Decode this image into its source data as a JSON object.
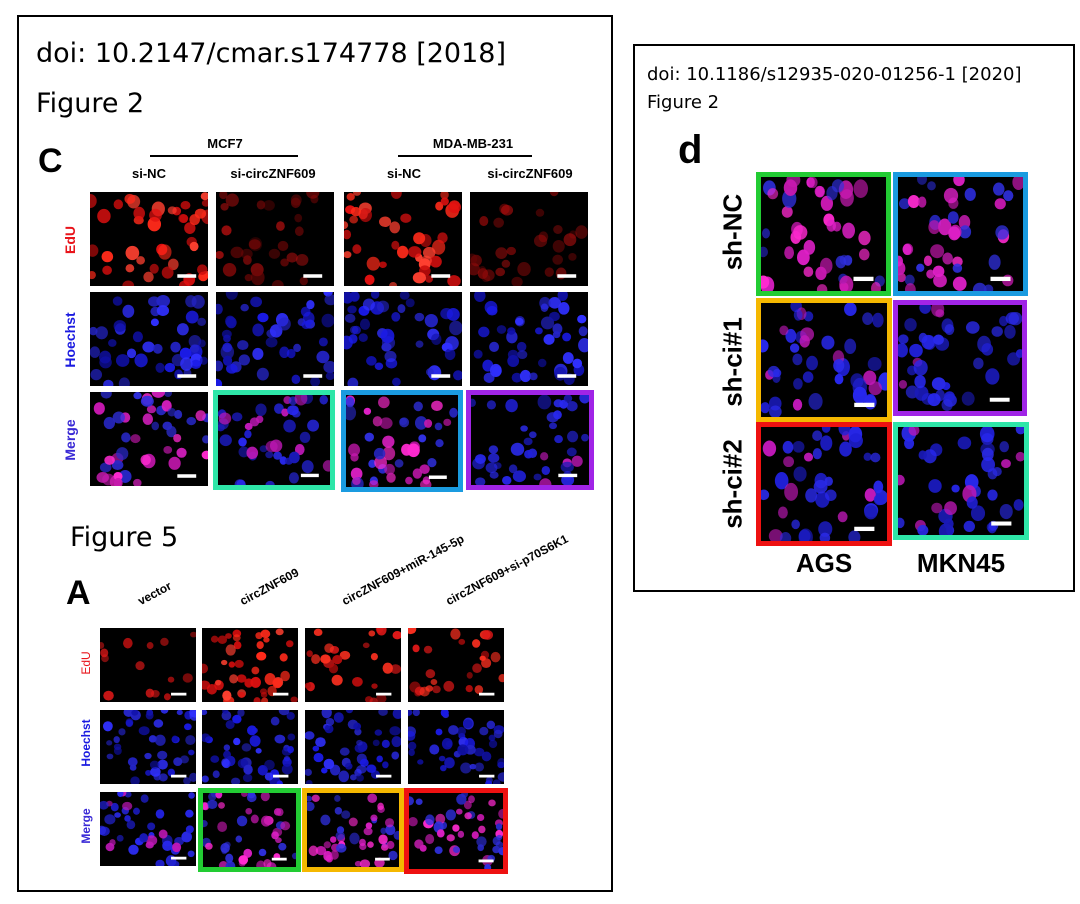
{
  "left_figure": {
    "doi": "doi: 10.2147/cmar.s174778 [2018]",
    "figure2_label": "Figure 2",
    "panel_c": {
      "letter": "C",
      "groups": [
        "MCF7",
        "MDA-MB-231"
      ],
      "columns": [
        "si-NC",
        "si-circZNF609",
        "si-NC",
        "si-circZNF609"
      ],
      "rows": [
        "EdU",
        "Hoechst",
        "Merge"
      ]
    },
    "figure5_label": "Figure 5",
    "panel_a": {
      "letter": "A",
      "columns": [
        "vector",
        "circZNF609",
        "circZNF609+miR-145-5p",
        "circZNF609+si-p70S6K1"
      ],
      "rows": [
        "EdU",
        "Hoechst",
        "Merge"
      ]
    }
  },
  "right_figure": {
    "doi": "doi: 10.1186/s12935-020-01256-1 [2020]",
    "figure2_label": "Figure 2",
    "panel_d": {
      "letter": "d",
      "rows": [
        "sh-NC",
        "sh-ci#1",
        "sh-ci#2"
      ],
      "columns": [
        "AGS",
        "MKN45"
      ]
    }
  },
  "colors": {
    "edu_label": "#e8141b",
    "hoechst_label": "#1a1ae0",
    "merge_label": "#3a2ad6",
    "highlight_green": "#22cc33",
    "highlight_cyan": "#2ee6a8",
    "highlight_blue": "#1a9be0",
    "highlight_purple": "#a024e6",
    "highlight_yellow": "#f5b800",
    "highlight_red": "#ee1111"
  }
}
